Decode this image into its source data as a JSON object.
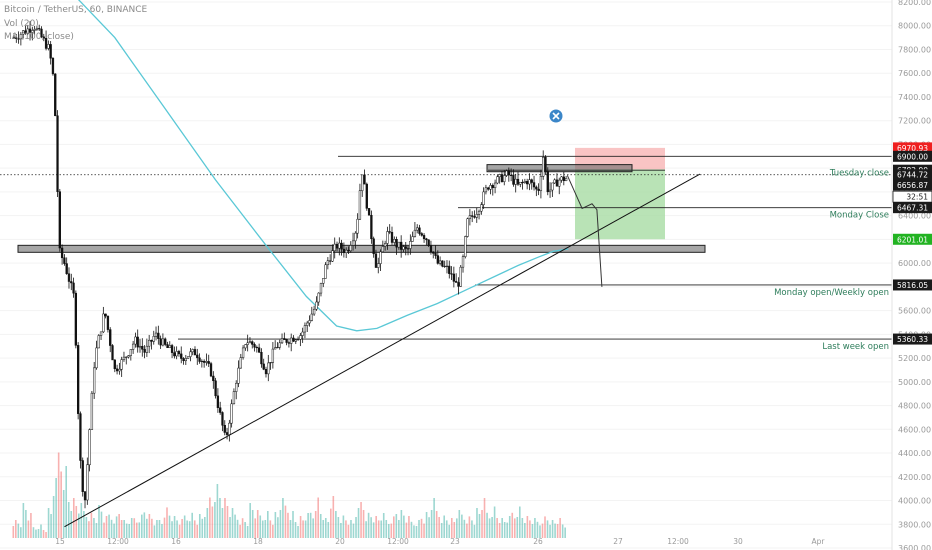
{
  "header": {
    "symbol_line": "Bitcoin / TetherUS, 60, BINANCE",
    "indicator_1": "Vol (20)",
    "indicator_2": "MA (100, close)"
  },
  "colors": {
    "up": "#26a69a",
    "down": "#ef5350",
    "candle": "#111111",
    "ma": "#5ac8d6",
    "red_tag": "#ef1f1f",
    "green_tag": "#22b322",
    "annotation_text": "#2e7d5b",
    "close_icon": "#3b86c8"
  },
  "chart_data": {
    "type": "candlestick",
    "symbol": "Bitcoin / TetherUS",
    "interval": "60",
    "exchange": "BINANCE",
    "ylim": [
      3600,
      8200
    ],
    "y_ticks": [
      3600,
      3800,
      4000,
      4200,
      4400,
      4600,
      4800,
      5000,
      5200,
      5400,
      5600,
      5800,
      6000,
      6200,
      6400,
      6600,
      6800,
      7000,
      7200,
      7400,
      7600,
      7800,
      8000,
      8200
    ],
    "y_tick_labels": [
      "3600.00",
      "3800.00",
      "4000.00",
      "4200.00",
      "4400.00",
      "4600.00",
      "4800.00",
      "5000.00",
      "5200.00",
      "5400.00",
      "5600.00",
      "5800.00",
      "6000.00",
      "6200.00",
      "6400.00",
      "6600.00",
      "6800.00",
      "7000.00",
      "7200.00",
      "7400.00",
      "7600.00",
      "7800.00",
      "8000.00",
      "8200.00"
    ],
    "x_tick_labels": [
      "15",
      "12:00",
      "16",
      "18",
      "20",
      "12:00",
      "23",
      "26",
      "27",
      "12:00",
      "30",
      "Apr"
    ],
    "price_path": [
      [
        0,
        7900
      ],
      [
        4,
        8000
      ],
      [
        7,
        7800
      ],
      [
        8,
        7500
      ],
      [
        9,
        6100
      ],
      [
        10,
        6000
      ],
      [
        12,
        5700
      ],
      [
        13,
        4400
      ],
      [
        14,
        3950
      ],
      [
        15,
        4600
      ],
      [
        16,
        5200
      ],
      [
        18,
        5600
      ],
      [
        20,
        5100
      ],
      [
        22,
        5200
      ],
      [
        24,
        5350
      ],
      [
        26,
        5250
      ],
      [
        28,
        5400
      ],
      [
        30,
        5300
      ],
      [
        33,
        5200
      ],
      [
        36,
        5250
      ],
      [
        39,
        5100
      ],
      [
        42,
        4500
      ],
      [
        44,
        5000
      ],
      [
        46,
        5350
      ],
      [
        48,
        5300
      ],
      [
        50,
        5100
      ],
      [
        52,
        5300
      ],
      [
        54,
        5350
      ],
      [
        57,
        5400
      ],
      [
        60,
        5650
      ],
      [
        62,
        6000
      ],
      [
        64,
        6150
      ],
      [
        66,
        6100
      ],
      [
        68,
        6300
      ],
      [
        69,
        6800
      ],
      [
        70,
        6500
      ],
      [
        71,
        6200
      ],
      [
        72,
        5950
      ],
      [
        74,
        6250
      ],
      [
        76,
        6150
      ],
      [
        78,
        6100
      ],
      [
        80,
        6300
      ],
      [
        82,
        6200
      ],
      [
        84,
        6000
      ],
      [
        86,
        5950
      ],
      [
        88,
        5800
      ],
      [
        89,
        6000
      ],
      [
        90,
        6350
      ],
      [
        92,
        6450
      ],
      [
        94,
        6650
      ],
      [
        96,
        6700
      ],
      [
        98,
        6750
      ],
      [
        100,
        6650
      ],
      [
        102,
        6700
      ],
      [
        104,
        6600
      ],
      [
        105,
        6900
      ],
      [
        106,
        6600
      ],
      [
        108,
        6700
      ],
      [
        110,
        6720
      ]
    ],
    "moving_average": {
      "name": "MA (100, close)",
      "points": [
        [
          11,
          8300
        ],
        [
          20,
          7900
        ],
        [
          30,
          7300
        ],
        [
          40,
          6700
        ],
        [
          50,
          6150
        ],
        [
          58,
          5720
        ],
        [
          64,
          5470
        ],
        [
          68,
          5430
        ],
        [
          72,
          5450
        ],
        [
          78,
          5560
        ],
        [
          84,
          5660
        ],
        [
          90,
          5780
        ],
        [
          96,
          5900
        ],
        [
          100,
          5980
        ],
        [
          104,
          6050
        ],
        [
          107,
          6100
        ],
        [
          110,
          6120
        ]
      ]
    },
    "volume": [
      20,
      18,
      35,
      25,
      12,
      15,
      10,
      30,
      60,
      95,
      80,
      45,
      40,
      35,
      30,
      28,
      25,
      33,
      22,
      26,
      24,
      30,
      18,
      20,
      22,
      26,
      32,
      24,
      18,
      20,
      34,
      28,
      22,
      19,
      25,
      28,
      22,
      24,
      30,
      45,
      60,
      50,
      40,
      30,
      26,
      22,
      20,
      35,
      28,
      25,
      30,
      22,
      26,
      40,
      36,
      30,
      20,
      22,
      25,
      28,
      45,
      30,
      20,
      42,
      30,
      25,
      22,
      18,
      30,
      40,
      28,
      26,
      22,
      25,
      20,
      24,
      30,
      28,
      22,
      18,
      20,
      24,
      26,
      40,
      30,
      25,
      22,
      20,
      28,
      26,
      24,
      22,
      30,
      40,
      28,
      35,
      25,
      20,
      22,
      28,
      35,
      25,
      22,
      20,
      18,
      24,
      22,
      18,
      20,
      15
    ],
    "horizontal_levels": [
      {
        "price": 6900,
        "label": ""
      },
      {
        "price": 6782.9,
        "label": ""
      },
      {
        "price": 6744.72,
        "label": "Tuesday close"
      },
      {
        "price": 6467.31,
        "label": "Monday Close"
      },
      {
        "price": 5816.05,
        "label": "Monday open/Weekly open"
      },
      {
        "price": 5360.33,
        "label": "Last week open"
      }
    ],
    "zones": [
      {
        "price_top": 6150,
        "price_bottom": 6110
      },
      {
        "price_top": 6830,
        "price_bottom": 6770
      }
    ],
    "trendline": {
      "from": [
        14,
        3780
      ],
      "to": [
        148,
        6750
      ]
    },
    "position": {
      "entry": 6790,
      "stop": 6970.93,
      "target": 6201.01,
      "from_bar": 113,
      "to_bar": 130
    },
    "projection_path": [
      [
        112,
        6740
      ],
      [
        115,
        6460
      ],
      [
        117,
        6500
      ],
      [
        118,
        6450
      ],
      [
        119,
        5800
      ]
    ],
    "price_tags": [
      {
        "value": "6970.93",
        "kind": "red",
        "price": 6970.93
      },
      {
        "value": "6900.00",
        "kind": "dark",
        "price": 6900
      },
      {
        "value": "6782.90",
        "kind": "dark",
        "price": 6782.9
      },
      {
        "value": "6744.72",
        "kind": "dark",
        "price": 6744.72
      },
      {
        "value": "6656.87",
        "kind": "dark",
        "price": 6656.87
      },
      {
        "value": "32:51",
        "kind": "outline",
        "price": 6560
      },
      {
        "value": "6467.31",
        "kind": "dark",
        "price": 6467.31
      },
      {
        "value": "6201.01",
        "kind": "green",
        "price": 6201.01
      },
      {
        "value": "5816.05",
        "kind": "dark",
        "price": 5816.05
      },
      {
        "value": "5360.33",
        "kind": "dark",
        "price": 5360.33
      }
    ]
  }
}
